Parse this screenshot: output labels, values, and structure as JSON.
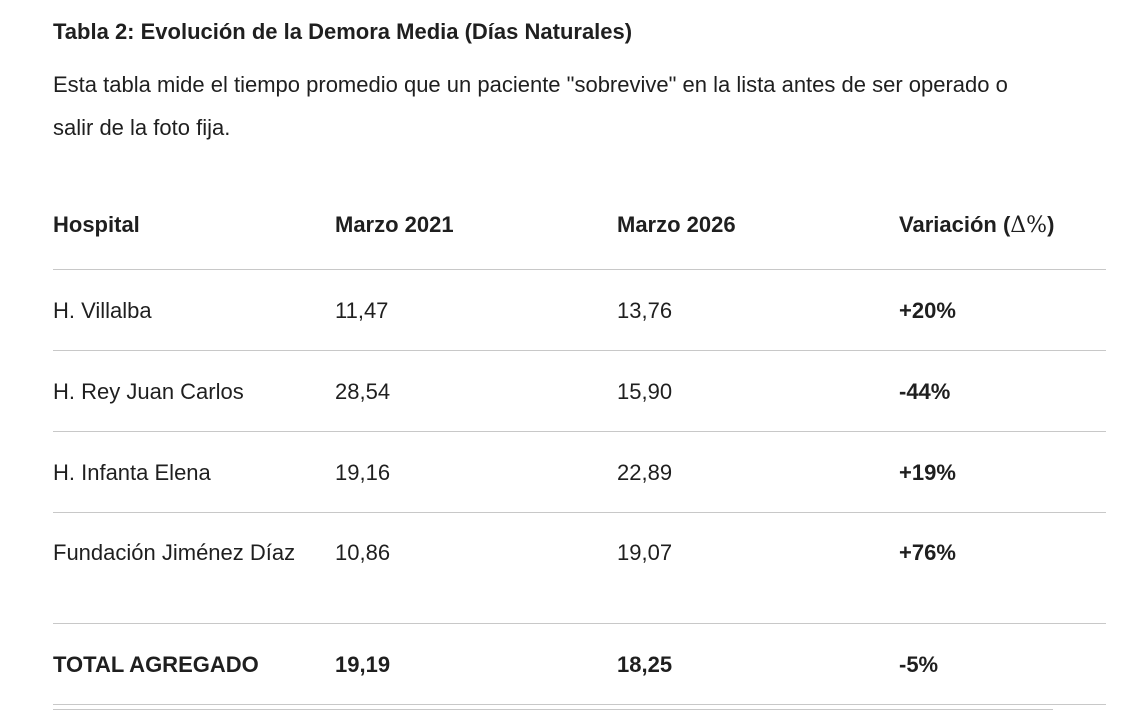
{
  "heading": "Tabla 2: Evolución de la Demora Media (Días Naturales)",
  "intro": "Esta tabla mide el tiempo promedio que un paciente \"sobrevive\" en la lista antes de ser operado o salir de la foto fija.",
  "table": {
    "headers": {
      "hospital": "Hospital",
      "col2021": "Marzo 2021",
      "col2026": "Marzo 2026",
      "variation_label": "Variación (",
      "variation_symbol": "Δ%",
      "variation_close": ")"
    },
    "rows": [
      {
        "hospital": "H. Villalba",
        "m2021": "11,47",
        "m2026": "13,76",
        "variation": "+20%"
      },
      {
        "hospital": "H. Rey Juan Carlos",
        "m2021": "28,54",
        "m2026": "15,90",
        "variation": "-44%"
      },
      {
        "hospital": "H. Infanta Elena",
        "m2021": "19,16",
        "m2026": "22,89",
        "variation": "+19%"
      },
      {
        "hospital": "Fundación Jiménez Díaz",
        "m2021": "10,86",
        "m2026": "19,07",
        "variation": "+76%"
      }
    ],
    "total": {
      "hospital": "TOTAL AGREGADO",
      "m2021": "19,19",
      "m2026": "18,25",
      "variation": "-5%"
    }
  }
}
